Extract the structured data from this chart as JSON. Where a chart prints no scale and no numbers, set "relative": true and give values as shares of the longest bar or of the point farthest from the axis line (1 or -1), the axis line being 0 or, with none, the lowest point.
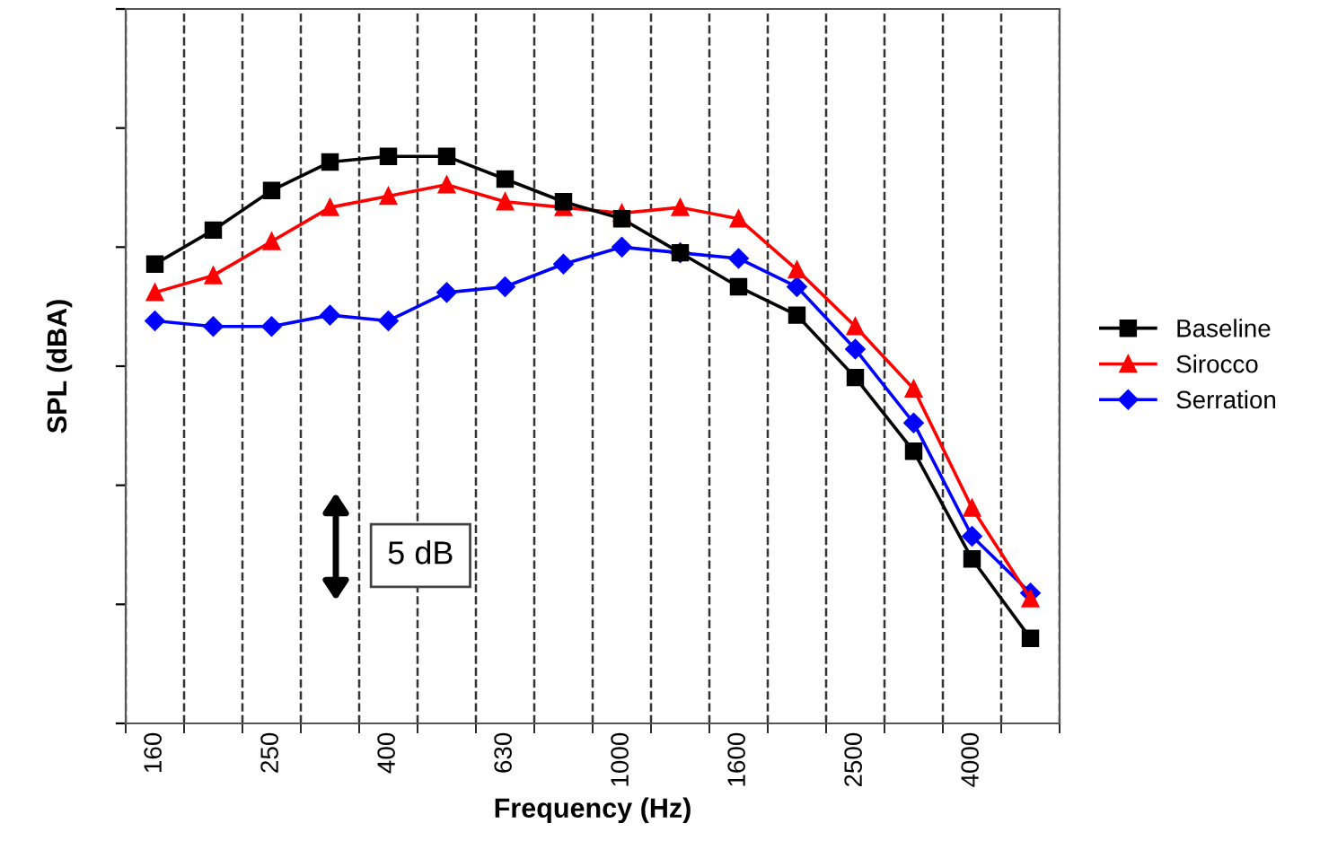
{
  "chart_data": {
    "type": "line",
    "relative": true,
    "xlabel": "Frequency (Hz)",
    "ylabel": "SPL (dBA)",
    "categories": [
      "160",
      null,
      "250",
      null,
      "400",
      null,
      "630",
      null,
      "1000",
      null,
      "1600",
      null,
      "2500",
      null,
      "4000",
      null
    ],
    "series": [
      {
        "name": "Baseline",
        "color": "#000000",
        "marker": "square",
        "values": [
          0.81,
          0.87,
          0.94,
          0.99,
          1.0,
          1.0,
          0.96,
          0.92,
          0.89,
          0.83,
          0.77,
          0.72,
          0.61,
          0.48,
          0.29,
          0.15
        ]
      },
      {
        "name": "Sirocco",
        "color": "#ff0000",
        "marker": "triangle",
        "values": [
          0.76,
          0.79,
          0.85,
          0.91,
          0.93,
          0.95,
          0.92,
          0.91,
          0.9,
          0.91,
          0.89,
          0.8,
          0.7,
          0.59,
          0.38,
          0.22
        ]
      },
      {
        "name": "Serration",
        "color": "#0000ff",
        "marker": "diamond",
        "values": [
          0.71,
          0.7,
          0.7,
          0.72,
          0.71,
          0.76,
          0.77,
          0.81,
          0.84,
          0.83,
          0.82,
          0.77,
          0.66,
          0.53,
          0.33,
          0.23
        ]
      }
    ],
    "annotations": [
      "5 dB"
    ],
    "grid": "x",
    "legend": "right",
    "line_style": "solid"
  }
}
